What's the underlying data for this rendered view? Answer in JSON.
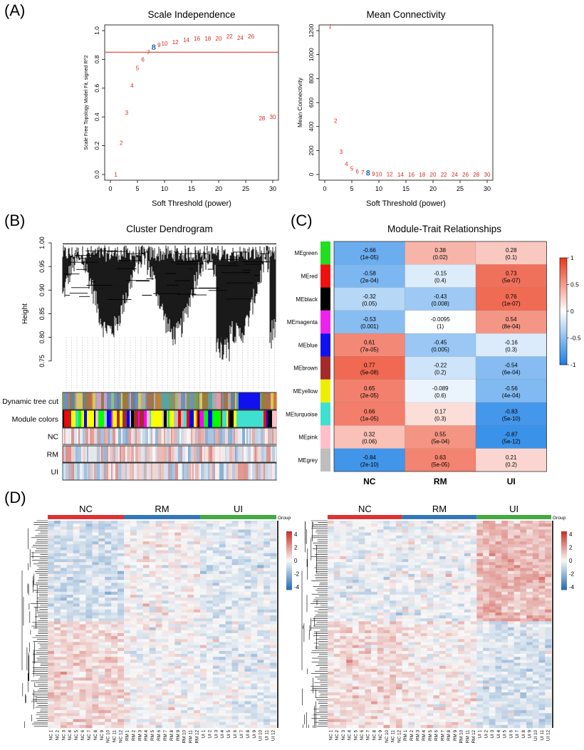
{
  "panels": {
    "a": "(A)",
    "b": "(B)",
    "c": "(C)",
    "d": "(D)"
  },
  "chart_data": [
    {
      "id": "scale-independence",
      "type": "scatter",
      "title": "Scale Independence",
      "xlabel": "Soft Threshold (power)",
      "ylabel": "Scale Free Topology Model Fit, signed R^2",
      "xlim": [
        0,
        30
      ],
      "ylim": [
        0,
        1.0
      ],
      "xticks": [
        0,
        5,
        10,
        15,
        20,
        25,
        30
      ],
      "yticks": [
        0.0,
        0.2,
        0.4,
        0.6,
        0.8,
        1.0
      ],
      "hline": 0.85,
      "highlight_label": "8",
      "points": [
        {
          "x": 1,
          "y": 0.0,
          "label": "1"
        },
        {
          "x": 2,
          "y": 0.22,
          "label": "2"
        },
        {
          "x": 3,
          "y": 0.43,
          "label": "3"
        },
        {
          "x": 4,
          "y": 0.62,
          "label": "4"
        },
        {
          "x": 5,
          "y": 0.74,
          "label": "5"
        },
        {
          "x": 6,
          "y": 0.8,
          "label": "6"
        },
        {
          "x": 7,
          "y": 0.85,
          "label": "7"
        },
        {
          "x": 8,
          "y": 0.88,
          "label": "8"
        },
        {
          "x": 9,
          "y": 0.9,
          "label": "9"
        },
        {
          "x": 10,
          "y": 0.91,
          "label": "10"
        },
        {
          "x": 12,
          "y": 0.92,
          "label": "12"
        },
        {
          "x": 14,
          "y": 0.935,
          "label": "14"
        },
        {
          "x": 16,
          "y": 0.945,
          "label": "16"
        },
        {
          "x": 18,
          "y": 0.945,
          "label": "18"
        },
        {
          "x": 20,
          "y": 0.945,
          "label": "20"
        },
        {
          "x": 22,
          "y": 0.96,
          "label": "22"
        },
        {
          "x": 24,
          "y": 0.95,
          "label": "24"
        },
        {
          "x": 26,
          "y": 0.96,
          "label": "26"
        },
        {
          "x": 28,
          "y": 0.39,
          "label": "28"
        },
        {
          "x": 30,
          "y": 0.4,
          "label": "30"
        }
      ]
    },
    {
      "id": "mean-connectivity",
      "type": "scatter",
      "title": "Mean Connectivity",
      "xlabel": "Soft Threshold (power)",
      "ylabel": "Mean Connectivity",
      "xlim": [
        0,
        30
      ],
      "ylim": [
        0,
        1200
      ],
      "xticks": [
        0,
        5,
        10,
        15,
        20,
        25,
        30
      ],
      "yticks": [
        0,
        200,
        400,
        600,
        800,
        1000,
        1200
      ],
      "highlight_label": "8",
      "points": [
        {
          "x": 1,
          "y": 1235,
          "label": "1"
        },
        {
          "x": 2,
          "y": 450,
          "label": "2"
        },
        {
          "x": 3,
          "y": 190,
          "label": "3"
        },
        {
          "x": 4,
          "y": 90,
          "label": "4"
        },
        {
          "x": 5,
          "y": 50,
          "label": "5"
        },
        {
          "x": 6,
          "y": 28,
          "label": "6"
        },
        {
          "x": 7,
          "y": 17,
          "label": "7"
        },
        {
          "x": 8,
          "y": 10,
          "label": "8"
        },
        {
          "x": 9,
          "y": 6,
          "label": "9"
        },
        {
          "x": 10,
          "y": 4,
          "label": "10"
        },
        {
          "x": 12,
          "y": 2,
          "label": "12"
        },
        {
          "x": 14,
          "y": 1,
          "label": "14"
        },
        {
          "x": 16,
          "y": 1,
          "label": "16"
        },
        {
          "x": 18,
          "y": 0,
          "label": "18"
        },
        {
          "x": 20,
          "y": 0,
          "label": "20"
        },
        {
          "x": 22,
          "y": 0,
          "label": "22"
        },
        {
          "x": 24,
          "y": 0,
          "label": "24"
        },
        {
          "x": 26,
          "y": 0,
          "label": "26"
        },
        {
          "x": 28,
          "y": 0,
          "label": "28"
        },
        {
          "x": 30,
          "y": 0,
          "label": "30"
        }
      ]
    },
    {
      "id": "cluster-dendrogram",
      "type": "dendrogram",
      "title": "Cluster Dendrogram",
      "ylabel": "Height",
      "ylim": [
        0.7,
        1.0
      ],
      "yticks": [
        0.75,
        0.8,
        0.85,
        0.9,
        0.95,
        1.0
      ],
      "ytick_labels": [
        "0.75",
        "0.80",
        "0.85",
        "0.90",
        "0.95",
        "1.00"
      ],
      "tracks": [
        "Dynamic tree cut",
        "Module colors",
        "NC",
        "RM",
        "UI"
      ]
    },
    {
      "id": "module-trait",
      "type": "heatmap",
      "title": "Module-Trait Relationships",
      "columns": [
        "NC",
        "RM",
        "UI"
      ],
      "legend_ticks": [
        "1",
        "0.5",
        "0",
        "-0.5",
        "-1"
      ],
      "legend_range": [
        -1,
        1
      ],
      "rows": [
        {
          "name": "MEgreen",
          "color": "#22dd22",
          "values": [
            -0.66,
            0.38,
            0.28
          ],
          "pvals": [
            "(1e-05)",
            "(0.02)",
            "(0.1)"
          ],
          "labels": [
            "-0.66",
            "0.38",
            "0.28"
          ]
        },
        {
          "name": "MEred",
          "color": "#ee1111",
          "values": [
            -0.58,
            -0.15,
            0.73
          ],
          "pvals": [
            "(2e-04)",
            "(0.4)",
            "(5e-07)"
          ],
          "labels": [
            "-0.58",
            "-0.15",
            "0.73"
          ]
        },
        {
          "name": "MEblack",
          "color": "#000000",
          "values": [
            -0.32,
            -0.43,
            0.76
          ],
          "pvals": [
            "(0.05)",
            "(0.008)",
            "(1e-07)"
          ],
          "labels": [
            "-0.32",
            "-0.43",
            "0.76"
          ]
        },
        {
          "name": "MEmagenta",
          "color": "#ee22ee",
          "values": [
            -0.53,
            -0.0095,
            0.54
          ],
          "pvals": [
            "(0.001)",
            "(1)",
            "(8e-04)"
          ],
          "labels": [
            "-0.53",
            "-0.0095",
            "0.54"
          ]
        },
        {
          "name": "MEblue",
          "color": "#1111ee",
          "values": [
            0.61,
            -0.45,
            -0.16
          ],
          "pvals": [
            "(7e-05)",
            "(0.005)",
            "(0.3)"
          ],
          "labels": [
            "0.61",
            "-0.45",
            "-0.16"
          ]
        },
        {
          "name": "MEbrown",
          "color": "#a52a2a",
          "values": [
            0.77,
            -0.22,
            -0.54
          ],
          "pvals": [
            "(5e-08)",
            "(0.2)",
            "(6e-04)"
          ],
          "labels": [
            "0.77",
            "-0.22",
            "-0.54"
          ]
        },
        {
          "name": "MEyellow",
          "color": "#eeee00",
          "values": [
            0.65,
            -0.089,
            -0.56
          ],
          "pvals": [
            "(2e-05)",
            "(0.6)",
            "(4e-04)"
          ],
          "labels": [
            "0.65",
            "-0.089",
            "-0.56"
          ]
        },
        {
          "name": "MEturquoise",
          "color": "#40e0d0",
          "values": [
            0.66,
            0.17,
            -0.83
          ],
          "pvals": [
            "(1e-05)",
            "(0.3)",
            "(5e-10)"
          ],
          "labels": [
            "0.66",
            "0.17",
            "-0.83"
          ]
        },
        {
          "name": "MEpink",
          "color": "#ffc0cb",
          "values": [
            0.32,
            0.55,
            -0.87
          ],
          "pvals": [
            "(0.06)",
            "(5e-04)",
            "(5e-12)"
          ],
          "labels": [
            "0.32",
            "0.55",
            "-0.87"
          ]
        },
        {
          "name": "MEgrey",
          "color": "#bebebe",
          "values": [
            -0.84,
            0.63,
            0.21
          ],
          "pvals": [
            "(2e-10)",
            "(5e-05)",
            "(0.2)"
          ],
          "labels": [
            "-0.84",
            "0.63",
            "0.21"
          ]
        }
      ]
    },
    {
      "id": "expression-heatmaps",
      "type": "heatmap",
      "groups": [
        {
          "name": "NC",
          "color": "#dd3333"
        },
        {
          "name": "RM",
          "color": "#3377bb"
        },
        {
          "name": "UI",
          "color": "#44aa44"
        }
      ],
      "group_legend_label": "Group",
      "legend_ticks": [
        "4",
        "2",
        "0",
        "-2",
        "-4"
      ],
      "legend_range": [
        -4,
        4
      ],
      "samples": [
        "NC 1",
        "NC 2",
        "NC 3",
        "NC 4",
        "NC 5",
        "NC 6",
        "NC 7",
        "NC 8",
        "NC 9",
        "NC 10",
        "NC 11",
        "NC 12",
        "RM 1",
        "RM 2",
        "RM 3",
        "RM 4",
        "RM 5",
        "RM 6",
        "RM 7",
        "RM 8",
        "RM 9",
        "RM 10",
        "RM 11",
        "RM 12",
        "UI 1",
        "UI 2",
        "UI 3",
        "UI 4",
        "UI 5",
        "UI 6",
        "UI 7",
        "UI 8",
        "UI 9",
        "UI 10",
        "UI 11",
        "UI 12"
      ]
    }
  ]
}
